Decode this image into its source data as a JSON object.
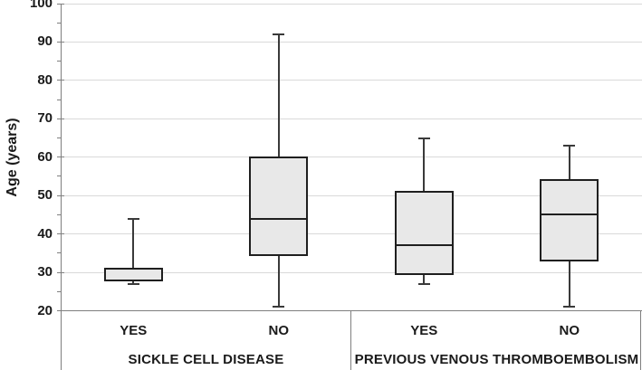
{
  "chart_data": {
    "type": "boxplot",
    "title": "",
    "xlabel": "",
    "ylabel": "Age (years)",
    "ylim": [
      20,
      100
    ],
    "y_major_step": 10,
    "y_minor_step": 5,
    "y_tick_labels": [
      "20",
      "30",
      "40",
      "50",
      "60",
      "70",
      "80",
      "90",
      "100"
    ],
    "grid": true,
    "legend": "none",
    "groups": [
      {
        "label": "SICKLE CELL DISEASE",
        "boxes": [
          {
            "label": "YES",
            "min": 27,
            "q1": 28,
            "median": 28,
            "q3": 31,
            "max": 44
          },
          {
            "label": "NO",
            "min": 21,
            "q1": 34.5,
            "median": 44,
            "q3": 60,
            "max": 92
          }
        ]
      },
      {
        "label": "PREVIOUS VENOUS THROMBOEMBOLISM",
        "boxes": [
          {
            "label": "YES",
            "min": 27,
            "q1": 29.5,
            "median": 37,
            "q3": 51,
            "max": 65
          },
          {
            "label": "NO",
            "min": 21,
            "q1": 33,
            "median": 45,
            "q3": 54,
            "max": 63
          }
        ]
      }
    ]
  },
  "colors": {
    "background": "#ffffff",
    "box_fill": "#e8e8e8",
    "box_border": "#1f1f1f",
    "whisker": "#3a3a3a",
    "median": "#1f1f1f",
    "gridline": "#d9d9d9",
    "axis": "#7f7f7f",
    "text": "#1a1a1a"
  }
}
